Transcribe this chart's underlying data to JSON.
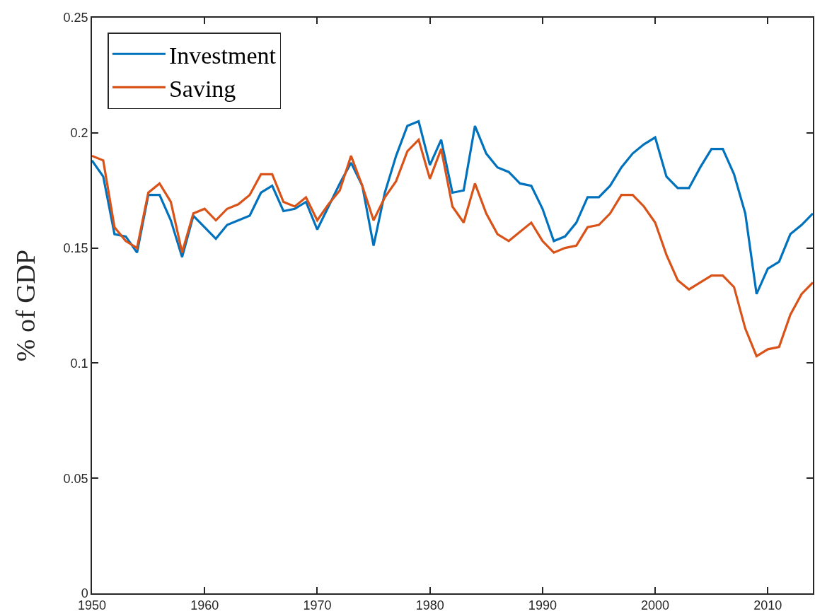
{
  "chart_data": {
    "type": "line",
    "ylabel": "% of GDP",
    "x": [
      1950,
      1951,
      1952,
      1953,
      1954,
      1955,
      1956,
      1957,
      1958,
      1959,
      1960,
      1961,
      1962,
      1963,
      1964,
      1965,
      1966,
      1967,
      1968,
      1969,
      1970,
      1971,
      1972,
      1973,
      1974,
      1975,
      1976,
      1977,
      1978,
      1979,
      1980,
      1981,
      1982,
      1983,
      1984,
      1985,
      1986,
      1987,
      1988,
      1989,
      1990,
      1991,
      1992,
      1993,
      1994,
      1995,
      1996,
      1997,
      1998,
      1999,
      2000,
      2001,
      2002,
      2003,
      2004,
      2005,
      2006,
      2007,
      2008,
      2009,
      2010,
      2011,
      2012,
      2013,
      2014
    ],
    "series": [
      {
        "name": "Investment",
        "color": "#0072bd",
        "values": [
          0.188,
          0.181,
          0.156,
          0.155,
          0.148,
          0.173,
          0.173,
          0.162,
          0.146,
          0.164,
          0.159,
          0.154,
          0.16,
          0.162,
          0.164,
          0.174,
          0.177,
          0.166,
          0.167,
          0.17,
          0.158,
          0.168,
          0.178,
          0.187,
          0.177,
          0.151,
          0.174,
          0.19,
          0.203,
          0.205,
          0.186,
          0.197,
          0.174,
          0.175,
          0.203,
          0.191,
          0.185,
          0.183,
          0.178,
          0.177,
          0.167,
          0.153,
          0.155,
          0.161,
          0.172,
          0.172,
          0.177,
          0.185,
          0.191,
          0.195,
          0.198,
          0.181,
          0.176,
          0.176,
          0.185,
          0.193,
          0.193,
          0.182,
          0.165,
          0.13,
          0.141,
          0.144,
          0.156,
          0.16,
          0.165
        ]
      },
      {
        "name": "Saving",
        "color": "#d95319",
        "values": [
          0.19,
          0.188,
          0.159,
          0.153,
          0.15,
          0.174,
          0.178,
          0.17,
          0.148,
          0.165,
          0.167,
          0.162,
          0.167,
          0.169,
          0.173,
          0.182,
          0.182,
          0.17,
          0.168,
          0.172,
          0.162,
          0.169,
          0.175,
          0.19,
          0.177,
          0.162,
          0.172,
          0.179,
          0.192,
          0.197,
          0.18,
          0.193,
          0.168,
          0.161,
          0.178,
          0.165,
          0.156,
          0.153,
          0.157,
          0.161,
          0.153,
          0.148,
          0.15,
          0.151,
          0.159,
          0.16,
          0.165,
          0.173,
          0.173,
          0.168,
          0.161,
          0.147,
          0.136,
          0.132,
          0.135,
          0.138,
          0.138,
          0.133,
          0.115,
          0.103,
          0.106,
          0.107,
          0.121,
          0.13,
          0.135
        ]
      }
    ],
    "xlim": [
      1950,
      2014
    ],
    "xticks": [
      1950,
      1960,
      1970,
      1980,
      1990,
      2000,
      2010
    ],
    "ylim": [
      0,
      0.25
    ],
    "yticks": [
      0,
      0.05,
      0.1,
      0.15,
      0.2,
      0.25
    ],
    "grid": false,
    "legend": "top left",
    "marker": "none",
    "line_style": "solid"
  }
}
